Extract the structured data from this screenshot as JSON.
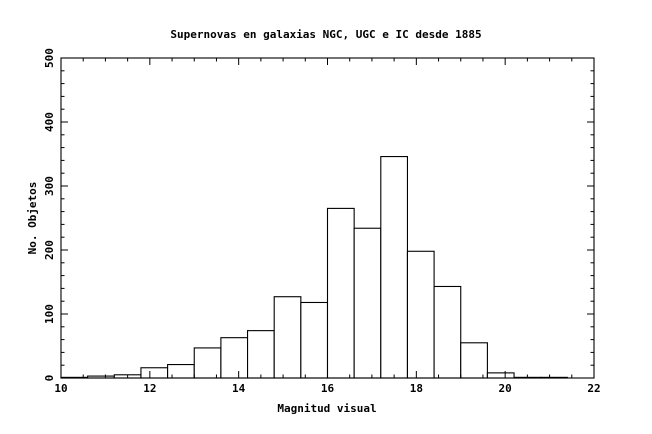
{
  "chart_data": {
    "type": "bar",
    "title": "Supernovas en galaxias NGC, UGC e IC desde 1885",
    "xlabel": "Magnitud visual",
    "ylabel": "No. Objetos",
    "xlim": [
      10,
      22
    ],
    "ylim": [
      0,
      500
    ],
    "x_ticks": [
      "10",
      "12",
      "14",
      "16",
      "18",
      "20",
      "22"
    ],
    "y_ticks": [
      "0",
      "100",
      "200",
      "300",
      "400",
      "500"
    ],
    "bin_width": 0.6,
    "bins": [
      {
        "x0": 10.0,
        "x1": 10.6,
        "value": 1
      },
      {
        "x0": 10.6,
        "x1": 11.2,
        "value": 3
      },
      {
        "x0": 11.2,
        "x1": 11.8,
        "value": 5
      },
      {
        "x0": 11.8,
        "x1": 12.4,
        "value": 16
      },
      {
        "x0": 12.4,
        "x1": 13.0,
        "value": 21
      },
      {
        "x0": 13.0,
        "x1": 13.6,
        "value": 47
      },
      {
        "x0": 13.6,
        "x1": 14.2,
        "value": 63
      },
      {
        "x0": 14.2,
        "x1": 14.8,
        "value": 74
      },
      {
        "x0": 14.8,
        "x1": 15.4,
        "value": 127
      },
      {
        "x0": 15.4,
        "x1": 16.0,
        "value": 118
      },
      {
        "x0": 16.0,
        "x1": 16.6,
        "value": 265
      },
      {
        "x0": 16.6,
        "x1": 17.2,
        "value": 234
      },
      {
        "x0": 17.2,
        "x1": 17.8,
        "value": 346
      },
      {
        "x0": 17.8,
        "x1": 18.4,
        "value": 198
      },
      {
        "x0": 18.4,
        "x1": 19.0,
        "value": 143
      },
      {
        "x0": 19.0,
        "x1": 19.6,
        "value": 55
      },
      {
        "x0": 19.6,
        "x1": 20.2,
        "value": 8
      },
      {
        "x0": 20.2,
        "x1": 20.8,
        "value": 1
      },
      {
        "x0": 20.8,
        "x1": 21.4,
        "value": 1
      }
    ],
    "grid": false,
    "legend": "none"
  }
}
